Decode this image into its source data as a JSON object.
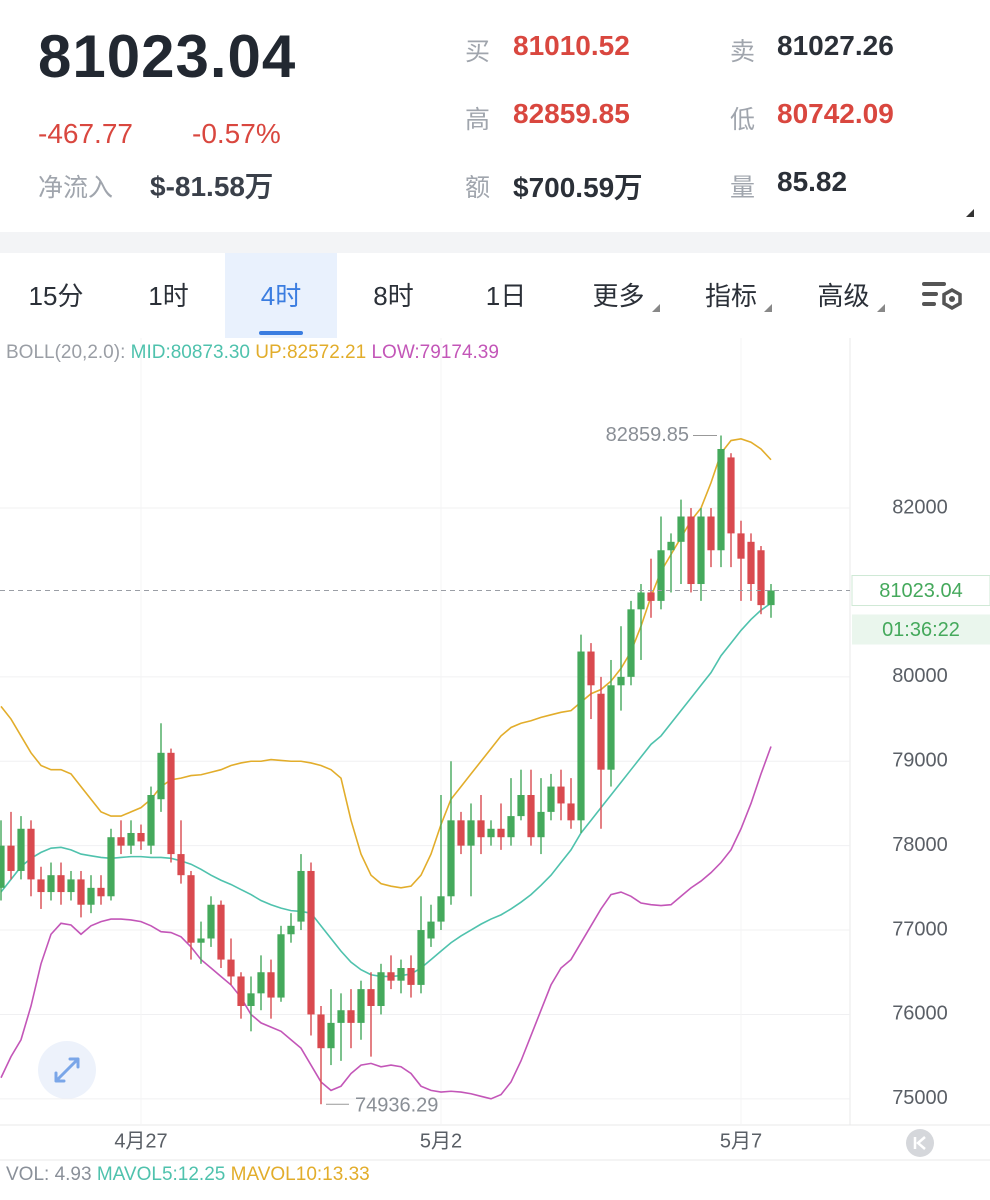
{
  "header": {
    "price": "81023.04",
    "change": "-467.77",
    "change_pct": "-0.57%",
    "net_inflow_label": "净流入",
    "net_inflow": "$-81.58万"
  },
  "stats": [
    {
      "label": "买",
      "value": "81010.52"
    },
    {
      "label": "卖",
      "value": "81027.26"
    },
    {
      "label": "高",
      "value": "82859.85"
    },
    {
      "label": "低",
      "value": "80742.09"
    },
    {
      "label": "额",
      "value": "$700.59万"
    },
    {
      "label": "量",
      "value": "85.82"
    }
  ],
  "tabs": [
    "15分",
    "1时",
    "4时",
    "8时",
    "1日",
    "更多",
    "指标",
    "高级"
  ],
  "active_tab": 2,
  "chart_data": {
    "type": "candlestick",
    "indicator_legend": {
      "label": "BOLL(20,2.0):",
      "items": [
        {
          "text": "MID:80873.30",
          "color": "#4fc2ad"
        },
        {
          "text": "UP:82572.21",
          "color": "#e2ad2b"
        },
        {
          "text": "LOW:79174.39",
          "color": "#c356b8"
        }
      ]
    },
    "categories": [
      null,
      null,
      null,
      null,
      null,
      null,
      null,
      null,
      null,
      null,
      null,
      null,
      null,
      null,
      "4月27",
      null,
      null,
      null,
      null,
      null,
      null,
      null,
      null,
      null,
      null,
      null,
      null,
      null,
      null,
      null,
      null,
      null,
      null,
      null,
      null,
      null,
      null,
      null,
      null,
      null,
      null,
      null,
      null,
      null,
      "5月2",
      null,
      null,
      null,
      null,
      null,
      null,
      null,
      null,
      null,
      null,
      null,
      null,
      null,
      null,
      null,
      null,
      null,
      null,
      null,
      null,
      null,
      null,
      null,
      null,
      null,
      null,
      null,
      null,
      null,
      "5月7",
      null,
      null,
      null
    ],
    "open": [
      77500,
      78000,
      77700,
      78200,
      77600,
      77450,
      77650,
      77450,
      77600,
      77300,
      77500,
      77400,
      78100,
      78000,
      78150,
      78000,
      78550,
      79100,
      77900,
      77650,
      76850,
      76900,
      77300,
      76650,
      76450,
      76100,
      76250,
      76500,
      76200,
      76950,
      77100,
      77700,
      76000,
      75600,
      75900,
      76050,
      75900,
      76300,
      76100,
      76500,
      76400,
      76550,
      76350,
      76900,
      77100,
      77400,
      78300,
      78000,
      78300,
      78100,
      78200,
      78100,
      78350,
      78600,
      78100,
      78400,
      78700,
      78500,
      78300,
      80300,
      79800,
      78900,
      79900,
      80000,
      80800,
      81000,
      80900,
      81500,
      81600,
      81900,
      81100,
      81900,
      81500,
      82600,
      81700,
      81600,
      81500,
      80850
    ],
    "high": [
      78300,
      78400,
      78350,
      78300,
      77750,
      77800,
      77800,
      77700,
      77700,
      77650,
      77650,
      78200,
      78300,
      78300,
      78250,
      78700,
      79450,
      79150,
      78300,
      77700,
      77100,
      77400,
      77350,
      76900,
      76500,
      76450,
      76700,
      76650,
      77050,
      77200,
      77900,
      77800,
      76100,
      76300,
      76250,
      76300,
      76400,
      76500,
      76600,
      76700,
      76650,
      76700,
      77400,
      77300,
      78600,
      79000,
      78400,
      78500,
      78600,
      78300,
      78500,
      78800,
      78900,
      78900,
      78800,
      78850,
      78900,
      78800,
      80500,
      80400,
      80000,
      80200,
      80600,
      80900,
      81100,
      81400,
      81900,
      81700,
      82100,
      82000,
      82000,
      82000,
      82859.85,
      82650,
      81850,
      81700,
      81550,
      81100
    ],
    "low": [
      77350,
      77600,
      77600,
      77400,
      77250,
      77350,
      77300,
      77350,
      77150,
      77200,
      77300,
      77350,
      77900,
      77900,
      77950,
      77900,
      78400,
      77800,
      77550,
      76650,
      76600,
      76800,
      76550,
      76350,
      75950,
      75800,
      76050,
      75950,
      76150,
      76850,
      77000,
      75750,
      74936.29,
      75400,
      75450,
      75600,
      75700,
      75500,
      76000,
      76300,
      76250,
      76200,
      76250,
      76800,
      77000,
      77300,
      77900,
      77400,
      77900,
      78000,
      77950,
      78000,
      78300,
      78000,
      77900,
      78300,
      78300,
      78200,
      78150,
      79500,
      78200,
      78700,
      79600,
      79900,
      80200,
      80700,
      80800,
      81000,
      81100,
      81000,
      80900,
      81300,
      81300,
      81300,
      80900,
      80900,
      80742.09,
      80700
    ],
    "close": [
      78000,
      77700,
      78200,
      77600,
      77450,
      77650,
      77450,
      77600,
      77300,
      77500,
      77400,
      78100,
      78000,
      78150,
      78050,
      78600,
      79100,
      77900,
      77650,
      76850,
      76900,
      77300,
      76650,
      76450,
      76100,
      76250,
      76500,
      76200,
      76950,
      77050,
      77700,
      76000,
      75600,
      75900,
      76050,
      75900,
      76300,
      76100,
      76500,
      76400,
      76550,
      76350,
      77000,
      77100,
      77400,
      78300,
      78000,
      78300,
      78100,
      78200,
      78100,
      78350,
      78600,
      78100,
      78400,
      78700,
      78500,
      78300,
      80300,
      79900,
      78900,
      79900,
      80000,
      80800,
      81000,
      80900,
      81500,
      81600,
      81900,
      81100,
      81900,
      81500,
      82700,
      81700,
      81400,
      81100,
      80850,
      81023.04
    ],
    "up_color": "#45a95c",
    "down_color": "#d94a4f",
    "series": [
      {
        "color": "#4fc2ad",
        "values": [
          77450,
          77600,
          77750,
          77850,
          77920,
          77970,
          77980,
          77950,
          77900,
          77880,
          77860,
          77850,
          77860,
          77870,
          77870,
          77860,
          77860,
          77850,
          77820,
          77780,
          77720,
          77650,
          77590,
          77540,
          77480,
          77420,
          77350,
          77300,
          77260,
          77230,
          77220,
          77200,
          77050,
          76900,
          76750,
          76620,
          76530,
          76470,
          76450,
          76450,
          76460,
          76480,
          76550,
          76650,
          76750,
          76850,
          76930,
          77000,
          77070,
          77130,
          77180,
          77250,
          77330,
          77420,
          77530,
          77650,
          77800,
          77950,
          78150,
          78300,
          78450,
          78600,
          78750,
          78900,
          79050,
          79200,
          79300,
          79450,
          79600,
          79750,
          79900,
          80050,
          80250,
          80400,
          80550,
          80680,
          80790,
          80873.3
        ]
      },
      {
        "color": "#e2ad2b",
        "values": [
          79650,
          79500,
          79300,
          79100,
          78950,
          78900,
          78900,
          78850,
          78700,
          78550,
          78400,
          78350,
          78350,
          78400,
          78450,
          78550,
          78700,
          78780,
          78800,
          78830,
          78840,
          78870,
          78900,
          78950,
          78980,
          79000,
          79000,
          79020,
          79010,
          79000,
          79000,
          78980,
          78950,
          78900,
          78800,
          78300,
          77900,
          77650,
          77550,
          77520,
          77500,
          77520,
          77650,
          77900,
          78250,
          78550,
          78700,
          78850,
          79000,
          79150,
          79300,
          79400,
          79450,
          79480,
          79520,
          79550,
          79580,
          79600,
          79700,
          79800,
          79850,
          79950,
          80100,
          80300,
          80600,
          80950,
          81250,
          81450,
          81650,
          81850,
          82000,
          82300,
          82650,
          82800,
          82820,
          82780,
          82700,
          82572.21
        ]
      },
      {
        "color": "#c356b8",
        "values": [
          75250,
          75500,
          75700,
          76100,
          76600,
          76950,
          77080,
          77060,
          76950,
          77050,
          77100,
          77130,
          77130,
          77120,
          77100,
          77050,
          76980,
          76970,
          76920,
          76800,
          76650,
          76550,
          76450,
          76350,
          76200,
          76000,
          75900,
          75850,
          75800,
          75700,
          75600,
          75400,
          75200,
          75100,
          75150,
          75300,
          75400,
          75420,
          75380,
          75400,
          75380,
          75300,
          75150,
          75100,
          75080,
          75090,
          75080,
          75060,
          75030,
          75000,
          75050,
          75200,
          75450,
          75750,
          76050,
          76350,
          76550,
          76650,
          76850,
          77050,
          77250,
          77420,
          77450,
          77400,
          77320,
          77300,
          77290,
          77300,
          77400,
          77500,
          77580,
          77680,
          77800,
          77950,
          78200,
          78500,
          78850,
          79174.39
        ]
      }
    ],
    "ylim": [
      74690,
      84015
    ],
    "yticks": [
      75000,
      76000,
      77000,
      78000,
      79000,
      80000,
      82000
    ],
    "grid": true,
    "countdown": "01:36:22",
    "volume_legend": [
      {
        "text": "VOL: 4.93",
        "color": "#8a9099"
      },
      {
        "text": "MAVOL5:12.25",
        "color": "#4fc2ad"
      },
      {
        "text": "MAVOL10:13.33",
        "color": "#e2ad2b"
      }
    ]
  }
}
